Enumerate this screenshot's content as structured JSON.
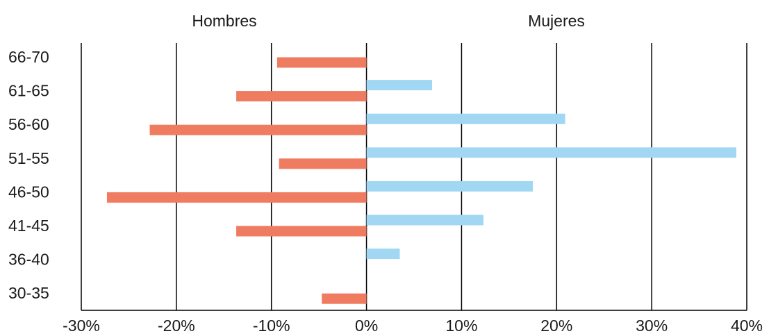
{
  "chart_data": {
    "type": "bar",
    "orientation": "horizontal",
    "categories": [
      "30-35",
      "36-40",
      "41-45",
      "46-50",
      "51-55",
      "56-60",
      "61-65",
      "66-70"
    ],
    "series": [
      {
        "name": "Hombres",
        "values": [
          -4.7,
          0,
          -13.7,
          -27.3,
          -9.2,
          -22.8,
          -13.7,
          -9.4
        ],
        "color": "#ef7b60"
      },
      {
        "name": "Mujeres",
        "values": [
          0,
          3.5,
          12.3,
          17.5,
          38.9,
          20.9,
          6.9,
          0
        ],
        "color": "#a1d7f3"
      }
    ],
    "xlim": [
      -30,
      40
    ],
    "xticks": [
      "-30%",
      "-20%",
      "-10%",
      "0%",
      "10%",
      "20%",
      "30%",
      "40%"
    ],
    "tick_values": [
      -30,
      -20,
      -10,
      0,
      10,
      20,
      30,
      40
    ],
    "grid": true
  }
}
